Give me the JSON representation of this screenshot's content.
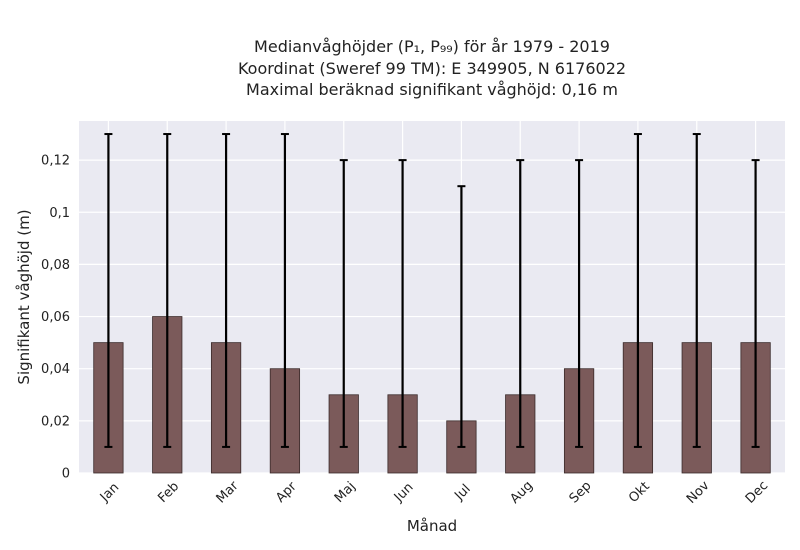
{
  "chart_data": {
    "type": "bar",
    "title_lines": [
      "Medianvåghöjder (P₁, P₉₉) för år 1979 - 2019",
      "Koordinat (Sweref 99 TM): E 349905, N 6176022",
      "Maximal beräknad signifikant våghöjd: 0,16 m"
    ],
    "xlabel": "Månad",
    "ylabel": "Signifikant våghöjd (m)",
    "categories": [
      "Jan",
      "Feb",
      "Mar",
      "Apr",
      "Maj",
      "Jun",
      "Jul",
      "Aug",
      "Sep",
      "Okt",
      "Nov",
      "Dec"
    ],
    "values": [
      0.05,
      0.06,
      0.05,
      0.04,
      0.03,
      0.03,
      0.02,
      0.03,
      0.04,
      0.05,
      0.05,
      0.05
    ],
    "error_low": [
      0.01,
      0.01,
      0.01,
      0.01,
      0.01,
      0.01,
      0.01,
      0.01,
      0.01,
      0.01,
      0.01,
      0.01
    ],
    "error_high": [
      0.13,
      0.13,
      0.13,
      0.13,
      0.12,
      0.12,
      0.11,
      0.12,
      0.12,
      0.13,
      0.13,
      0.12
    ],
    "ylim": [
      0,
      0.135
    ],
    "yticks": [
      0,
      0.02,
      0.04,
      0.06,
      0.08,
      0.1,
      0.12
    ],
    "ytick_labels": [
      "0",
      "0,02",
      "0,04",
      "0,06",
      "0,08",
      "0,1",
      "0,12"
    ],
    "grid": true,
    "colors": {
      "bar": "#7b5a5a",
      "bar_edge": "#3a2a2a",
      "errorbar": "#000000",
      "plot_background": "#eaeaf2",
      "grid": "#ffffff"
    }
  }
}
